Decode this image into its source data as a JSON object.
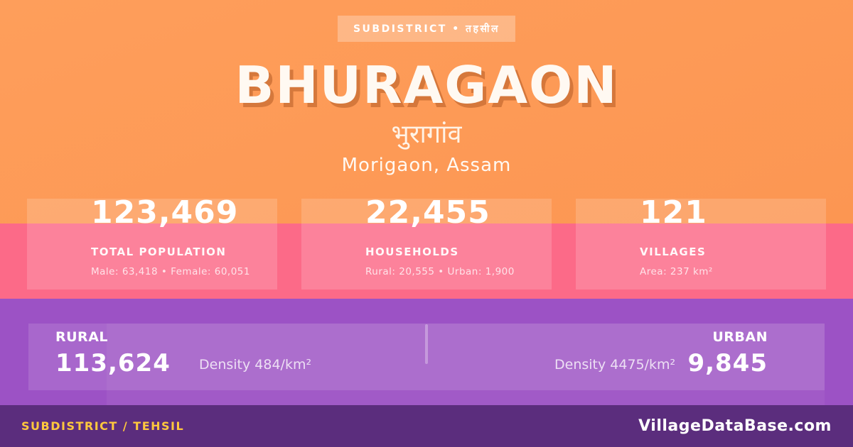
{
  "badge": {
    "label": "SUBDISTRICT • तहसील"
  },
  "header": {
    "title": "BHURAGAON",
    "local_name": "भुरागांव",
    "region": "Morigaon, Assam"
  },
  "stats": [
    {
      "value": "123,469",
      "label": "TOTAL POPULATION",
      "detail": "Male: 63,418 • Female: 60,051"
    },
    {
      "value": "22,455",
      "label": "HOUSEHOLDS",
      "detail": "Rural: 20,555 • Urban: 1,900"
    },
    {
      "value": "121",
      "label": "VILLAGES",
      "detail": "Area: 237 km²"
    }
  ],
  "breakdown": {
    "rural": {
      "label": "RURAL",
      "value": "113,624",
      "density": "Density 484/km²"
    },
    "urban": {
      "label": "URBAN",
      "value": "9,845",
      "density": "Density 4475/km²"
    }
  },
  "footer": {
    "type_label": "SUBDISTRICT / TEHSIL",
    "brand": "VillageDataBase.com"
  },
  "colors": {
    "orange_bg": "#FD9A56",
    "pink_band": "#FC6A88",
    "purple_band": "#9C52C5",
    "footer_bar": "#5B2D7D",
    "accent_yellow": "#FFC83D",
    "text_white": "#FFFFFF"
  }
}
